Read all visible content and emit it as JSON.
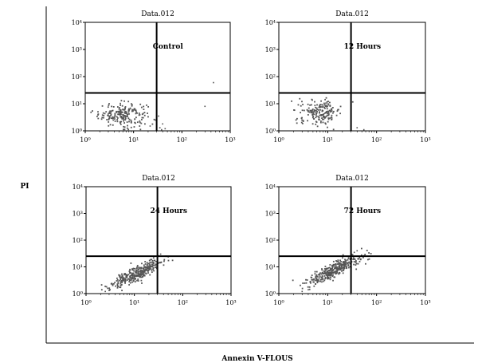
{
  "figure": {
    "ylabel": "PI",
    "xlabel": "Annexin V-FLOUS"
  },
  "colors": {
    "dot": "#555555",
    "line": "#000000",
    "frame": "#000000"
  },
  "chart_data": [
    {
      "type": "scatter",
      "title": "Data.012",
      "annotation": "Control",
      "x_scale": "log",
      "y_scale": "log",
      "xlim": [
        1,
        1000
      ],
      "ylim": [
        1,
        10000
      ],
      "x_ticks": [
        "10⁰",
        "10¹",
        "10²",
        "10³"
      ],
      "y_ticks": [
        "10⁰",
        "10¹",
        "10²",
        "10³",
        "10⁴"
      ],
      "gate": {
        "x": 30,
        "y": 25
      },
      "cluster": {
        "center": [
          6,
          4
        ],
        "spread": [
          0.25,
          0.22
        ],
        "count": 200
      },
      "outliers": [
        [
          22,
          1.5
        ],
        [
          35,
          1.3
        ],
        [
          40,
          1.8
        ],
        [
          28,
          2.5
        ],
        [
          45,
          1.2
        ],
        [
          33,
          3.5
        ],
        [
          450,
          60
        ],
        [
          300,
          8
        ],
        [
          38,
          1.1
        ]
      ]
    },
    {
      "type": "scatter",
      "title": "Data.012",
      "annotation": "12 Hours",
      "x_scale": "log",
      "y_scale": "log",
      "xlim": [
        1,
        1000
      ],
      "ylim": [
        1,
        10000
      ],
      "x_ticks": [
        "10⁰",
        "10¹",
        "10²",
        "10³"
      ],
      "y_ticks": [
        "10⁰",
        "10¹",
        "10²",
        "10³",
        "10⁴"
      ],
      "gate": {
        "x": 30,
        "y": 25
      },
      "cluster": {
        "center": [
          7,
          5
        ],
        "spread": [
          0.22,
          0.22
        ],
        "count": 180
      },
      "outliers": [
        [
          40,
          1.3
        ],
        [
          55,
          1.1
        ],
        [
          30,
          1.5
        ]
      ]
    },
    {
      "type": "scatter",
      "title": "Data.012",
      "annotation": "24 Hours",
      "x_scale": "log",
      "y_scale": "log",
      "xlim": [
        1,
        1000
      ],
      "ylim": [
        1,
        10000
      ],
      "x_ticks": [
        "10⁰",
        "10¹",
        "10²",
        "10³"
      ],
      "y_ticks": [
        "10⁰",
        "10¹",
        "10²",
        "10³",
        "10⁴"
      ],
      "gate": {
        "x": 30,
        "y": 25
      },
      "cluster": {
        "center": [
          12,
          6
        ],
        "spread": [
          0.28,
          0.28
        ],
        "count": 320,
        "correlated": true
      },
      "outliers": [
        [
          2.5,
          1.2
        ],
        [
          3,
          1.3
        ],
        [
          35,
          30
        ],
        [
          30,
          20
        ]
      ]
    },
    {
      "type": "scatter",
      "title": "Data.012",
      "annotation": "72 Hours",
      "x_scale": "log",
      "y_scale": "log",
      "xlim": [
        1,
        1000
      ],
      "ylim": [
        1,
        10000
      ],
      "x_ticks": [
        "10⁰",
        "10¹",
        "10²",
        "10³"
      ],
      "y_ticks": [
        "10⁰",
        "10¹",
        "10²",
        "10³",
        "10⁴"
      ],
      "gate": {
        "x": 30,
        "y": 25
      },
      "cluster": {
        "center": [
          14,
          8
        ],
        "spread": [
          0.3,
          0.3
        ],
        "count": 340,
        "correlated": true
      },
      "outliers": [
        [
          3,
          1.2
        ],
        [
          4,
          1.4
        ],
        [
          40,
          40
        ],
        [
          35,
          35
        ]
      ]
    }
  ]
}
